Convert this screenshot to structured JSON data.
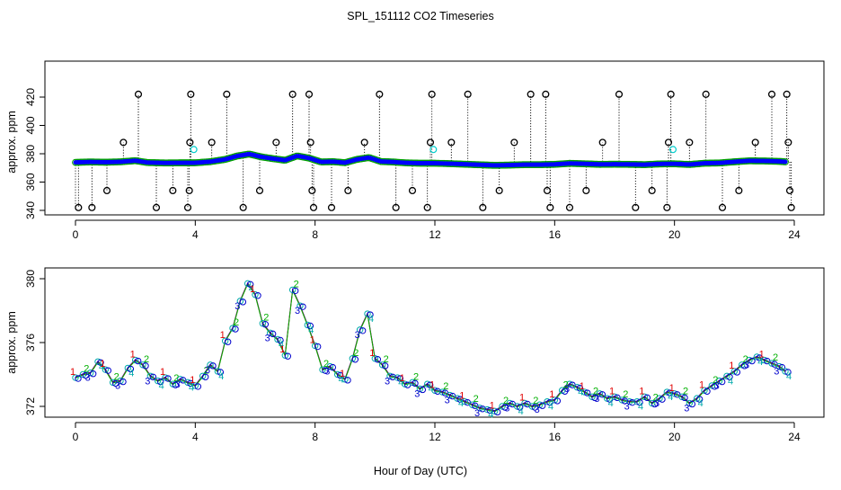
{
  "title": "SPL_151112  CO2 Timeseries",
  "xlabel": "Hour of Day (UTC)",
  "colors": {
    "frame": "#000000",
    "outlier": "#000000",
    "series_main": "#0000ff",
    "series_ring": "#00a000",
    "flag_cyan": "#00cccc",
    "digit_1": "#e00000",
    "digit_2": "#00b000",
    "digit_3": "#0000cc",
    "digit_4": "#00aaaa"
  },
  "chart_data": [
    {
      "type": "scatter",
      "name": "top-panel",
      "ylabel": "approx. ppm",
      "xlim": [
        0,
        24
      ],
      "ylim": [
        340,
        420
      ],
      "xticks": [
        0,
        4,
        8,
        12,
        16,
        20,
        24
      ],
      "yticks": [
        340,
        360,
        380,
        400,
        420
      ],
      "xtick_labels": [
        "0",
        "4",
        "8",
        "12",
        "16",
        "20",
        "24"
      ],
      "ytick_labels": [
        "340",
        "360",
        "380",
        "400",
        "420"
      ],
      "series_profile": [
        [
          0.0,
          373.9
        ],
        [
          0.5,
          374.2
        ],
        [
          1.0,
          374.0
        ],
        [
          1.5,
          374.3
        ],
        [
          2.0,
          375.1
        ],
        [
          2.4,
          373.8
        ],
        [
          3.0,
          373.5
        ],
        [
          3.5,
          373.6
        ],
        [
          4.0,
          373.6
        ],
        [
          4.5,
          374.4
        ],
        [
          5.0,
          376.0
        ],
        [
          5.4,
          378.4
        ],
        [
          5.8,
          379.8
        ],
        [
          6.2,
          377.8
        ],
        [
          6.6,
          376.5
        ],
        [
          7.0,
          375.4
        ],
        [
          7.4,
          378.5
        ],
        [
          7.8,
          376.9
        ],
        [
          8.2,
          374.2
        ],
        [
          8.6,
          374.4
        ],
        [
          9.0,
          373.7
        ],
        [
          9.4,
          376.0
        ],
        [
          9.8,
          377.3
        ],
        [
          10.2,
          374.5
        ],
        [
          10.6,
          374.2
        ],
        [
          11.0,
          373.6
        ],
        [
          11.5,
          373.3
        ],
        [
          12.0,
          373.3
        ],
        [
          12.5,
          373.0
        ],
        [
          13.0,
          372.6
        ],
        [
          13.5,
          372.2
        ],
        [
          14.0,
          371.8
        ],
        [
          14.5,
          372.0
        ],
        [
          15.0,
          372.3
        ],
        [
          15.5,
          372.3
        ],
        [
          16.0,
          372.5
        ],
        [
          16.5,
          373.2
        ],
        [
          17.0,
          372.9
        ],
        [
          17.5,
          372.5
        ],
        [
          18.0,
          372.6
        ],
        [
          18.5,
          372.5
        ],
        [
          19.0,
          372.3
        ],
        [
          19.5,
          372.8
        ],
        [
          20.0,
          372.9
        ],
        [
          20.5,
          372.4
        ],
        [
          21.0,
          373.3
        ],
        [
          21.5,
          373.5
        ],
        [
          22.0,
          374.3
        ],
        [
          22.5,
          375.0
        ],
        [
          23.0,
          374.9
        ],
        [
          23.5,
          374.6
        ],
        [
          23.7,
          374.3
        ]
      ],
      "cyan_points": [
        [
          3.95,
          383
        ],
        [
          11.95,
          383
        ],
        [
          19.95,
          383
        ]
      ],
      "outliers": [
        [
          0.1,
          342
        ],
        [
          0.55,
          342
        ],
        [
          1.05,
          354
        ],
        [
          1.6,
          388
        ],
        [
          2.1,
          422
        ],
        [
          2.7,
          342
        ],
        [
          3.25,
          354
        ],
        [
          3.75,
          342
        ],
        [
          3.8,
          354
        ],
        [
          3.82,
          388
        ],
        [
          3.85,
          422
        ],
        [
          4.55,
          388
        ],
        [
          5.05,
          422
        ],
        [
          5.6,
          342
        ],
        [
          6.15,
          354
        ],
        [
          6.7,
          388
        ],
        [
          7.25,
          422
        ],
        [
          7.8,
          422
        ],
        [
          7.85,
          388
        ],
        [
          7.9,
          354
        ],
        [
          7.95,
          342
        ],
        [
          8.55,
          342
        ],
        [
          9.1,
          354
        ],
        [
          9.65,
          388
        ],
        [
          10.15,
          422
        ],
        [
          10.7,
          342
        ],
        [
          11.25,
          354
        ],
        [
          11.75,
          342
        ],
        [
          11.85,
          388
        ],
        [
          11.9,
          422
        ],
        [
          12.55,
          388
        ],
        [
          13.1,
          422
        ],
        [
          13.6,
          342
        ],
        [
          14.15,
          354
        ],
        [
          14.65,
          388
        ],
        [
          15.2,
          422
        ],
        [
          15.7,
          422
        ],
        [
          15.75,
          354
        ],
        [
          15.85,
          342
        ],
        [
          16.5,
          342
        ],
        [
          17.05,
          354
        ],
        [
          17.6,
          388
        ],
        [
          18.15,
          422
        ],
        [
          18.7,
          342
        ],
        [
          19.25,
          354
        ],
        [
          19.75,
          342
        ],
        [
          19.8,
          388
        ],
        [
          19.88,
          422
        ],
        [
          20.5,
          388
        ],
        [
          21.05,
          422
        ],
        [
          21.6,
          342
        ],
        [
          22.15,
          354
        ],
        [
          22.7,
          388
        ],
        [
          23.25,
          422
        ],
        [
          23.75,
          422
        ],
        [
          23.8,
          388
        ],
        [
          23.85,
          354
        ],
        [
          23.9,
          342
        ]
      ]
    },
    {
      "type": "line",
      "name": "bottom-panel",
      "ylabel": "approx. ppm",
      "xlim": [
        0,
        24
      ],
      "ylim": [
        372,
        380
      ],
      "xticks": [
        0,
        4,
        8,
        12,
        16,
        20,
        24
      ],
      "yticks": [
        372,
        376,
        380
      ],
      "xtick_labels": [
        "0",
        "4",
        "8",
        "12",
        "16",
        "20",
        "24"
      ],
      "ytick_labels": [
        "372",
        "376",
        "380"
      ],
      "marker_digits": [
        "1",
        "2",
        "3",
        "4"
      ],
      "series": [
        {
          "name": "co2",
          "x": [
            0.0,
            0.25,
            0.5,
            0.75,
            1.0,
            1.25,
            1.5,
            1.75,
            2.0,
            2.25,
            2.5,
            2.75,
            3.0,
            3.25,
            3.5,
            3.75,
            4.0,
            4.25,
            4.5,
            4.75,
            5.0,
            5.25,
            5.5,
            5.75,
            6.0,
            6.25,
            6.5,
            6.75,
            7.0,
            7.25,
            7.5,
            7.75,
            8.0,
            8.25,
            8.5,
            8.75,
            9.0,
            9.25,
            9.5,
            9.75,
            10.0,
            10.25,
            10.5,
            10.75,
            11.0,
            11.25,
            11.5,
            11.75,
            12.0,
            12.25,
            12.5,
            12.75,
            13.0,
            13.25,
            13.5,
            13.75,
            14.0,
            14.25,
            14.5,
            14.75,
            15.0,
            15.25,
            15.5,
            15.75,
            16.0,
            16.25,
            16.5,
            16.75,
            17.0,
            17.25,
            17.5,
            17.75,
            18.0,
            18.25,
            18.5,
            18.75,
            19.0,
            19.25,
            19.5,
            19.75,
            20.0,
            20.25,
            20.5,
            20.75,
            21.0,
            21.25,
            21.5,
            21.75,
            22.0,
            22.25,
            22.5,
            22.75,
            23.0,
            23.25,
            23.5,
            23.7
          ],
          "y": [
            373.8,
            374.0,
            374.1,
            374.8,
            374.3,
            373.5,
            373.6,
            374.4,
            374.9,
            374.6,
            373.9,
            373.6,
            373.8,
            373.4,
            373.7,
            373.5,
            373.3,
            373.9,
            374.6,
            374.2,
            376.1,
            376.9,
            378.6,
            379.7,
            379.0,
            377.2,
            376.6,
            376.2,
            375.2,
            379.3,
            378.3,
            377.1,
            375.8,
            374.3,
            374.5,
            374.0,
            373.7,
            375.0,
            376.8,
            377.8,
            375.0,
            374.6,
            373.9,
            373.8,
            373.4,
            373.5,
            373.1,
            373.4,
            373.0,
            372.9,
            372.7,
            372.5,
            372.3,
            372.1,
            371.9,
            371.8,
            371.7,
            372.0,
            372.2,
            372.0,
            372.2,
            372.0,
            372.1,
            372.3,
            372.4,
            373.0,
            373.4,
            373.2,
            372.9,
            372.6,
            372.8,
            372.5,
            372.6,
            372.4,
            372.3,
            372.3,
            372.6,
            372.2,
            372.5,
            372.9,
            372.8,
            372.6,
            372.2,
            372.5,
            373.0,
            373.3,
            373.6,
            373.9,
            374.2,
            374.6,
            374.9,
            375.1,
            374.9,
            374.7,
            374.5,
            374.2
          ]
        }
      ]
    }
  ]
}
